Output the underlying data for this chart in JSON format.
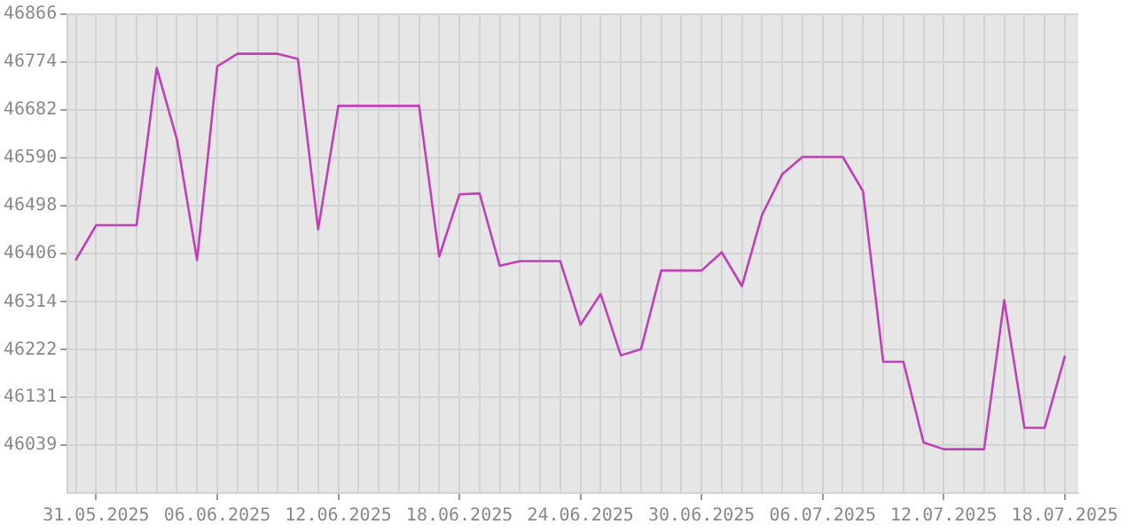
{
  "chart_data": {
    "type": "line",
    "x": [
      "2025-05-30",
      "2025-05-31",
      "2025-06-01",
      "2025-06-02",
      "2025-06-03",
      "2025-06-04",
      "2025-06-05",
      "2025-06-06",
      "2025-06-07",
      "2025-06-08",
      "2025-06-09",
      "2025-06-10",
      "2025-06-11",
      "2025-06-12",
      "2025-06-13",
      "2025-06-14",
      "2025-06-15",
      "2025-06-16",
      "2025-06-17",
      "2025-06-18",
      "2025-06-19",
      "2025-06-20",
      "2025-06-21",
      "2025-06-22",
      "2025-06-23",
      "2025-06-24",
      "2025-06-25",
      "2025-06-26",
      "2025-06-27",
      "2025-06-28",
      "2025-06-29",
      "2025-06-30",
      "2025-07-01",
      "2025-07-02",
      "2025-07-03",
      "2025-07-04",
      "2025-07-05",
      "2025-07-06",
      "2025-07-07",
      "2025-07-08",
      "2025-07-09",
      "2025-07-10",
      "2025-07-11",
      "2025-07-12",
      "2025-07-13",
      "2025-07-14",
      "2025-07-15",
      "2025-07-16",
      "2025-07-17",
      "2025-07-18"
    ],
    "series": [
      {
        "color": "#c040b8",
        "values": [
          46395,
          46461,
          46461,
          46461,
          46763,
          46626,
          46394,
          46766,
          46790,
          46790,
          46790,
          46780,
          46453,
          46690,
          46690,
          46690,
          46690,
          46690,
          46401,
          46520,
          46522,
          46383,
          46392,
          46392,
          46392,
          46270,
          46329,
          46211,
          46223,
          46374,
          46374,
          46374,
          46409,
          46344,
          46481,
          46559,
          46592,
          46592,
          46592,
          46526,
          46199,
          46199,
          46044,
          46031,
          46031,
          46031,
          46317,
          46072,
          46072,
          46209
        ]
      }
    ],
    "xlim": [
      "2025-05-29T14:00",
      "2025-07-18T16:00"
    ],
    "xticks": [
      {
        "value": "2025-05-30",
        "label": null
      },
      {
        "value": "2025-05-31",
        "label": "31.05.2025"
      },
      {
        "value": "2025-06-01",
        "label": null
      },
      {
        "value": "2025-06-02",
        "label": null
      },
      {
        "value": "2025-06-03",
        "label": null
      },
      {
        "value": "2025-06-04",
        "label": null
      },
      {
        "value": "2025-06-05",
        "label": null
      },
      {
        "value": "2025-06-06",
        "label": "06.06.2025"
      },
      {
        "value": "2025-06-07",
        "label": null
      },
      {
        "value": "2025-06-08",
        "label": null
      },
      {
        "value": "2025-06-09",
        "label": null
      },
      {
        "value": "2025-06-10",
        "label": null
      },
      {
        "value": "2025-06-11",
        "label": null
      },
      {
        "value": "2025-06-12",
        "label": "12.06.2025"
      },
      {
        "value": "2025-06-13",
        "label": null
      },
      {
        "value": "2025-06-14",
        "label": null
      },
      {
        "value": "2025-06-15",
        "label": null
      },
      {
        "value": "2025-06-16",
        "label": null
      },
      {
        "value": "2025-06-17",
        "label": null
      },
      {
        "value": "2025-06-18",
        "label": "18.06.2025"
      },
      {
        "value": "2025-06-19",
        "label": null
      },
      {
        "value": "2025-06-20",
        "label": null
      },
      {
        "value": "2025-06-21",
        "label": null
      },
      {
        "value": "2025-06-22",
        "label": null
      },
      {
        "value": "2025-06-23",
        "label": null
      },
      {
        "value": "2025-06-24",
        "label": "24.06.2025"
      },
      {
        "value": "2025-06-25",
        "label": null
      },
      {
        "value": "2025-06-26",
        "label": null
      },
      {
        "value": "2025-06-27",
        "label": null
      },
      {
        "value": "2025-06-28",
        "label": null
      },
      {
        "value": "2025-06-29",
        "label": null
      },
      {
        "value": "2025-06-30",
        "label": "30.06.2025"
      },
      {
        "value": "2025-07-01",
        "label": null
      },
      {
        "value": "2025-07-02",
        "label": null
      },
      {
        "value": "2025-07-03",
        "label": null
      },
      {
        "value": "2025-07-04",
        "label": null
      },
      {
        "value": "2025-07-05",
        "label": null
      },
      {
        "value": "2025-07-06",
        "label": "06.07.2025"
      },
      {
        "value": "2025-07-07",
        "label": null
      },
      {
        "value": "2025-07-08",
        "label": null
      },
      {
        "value": "2025-07-09",
        "label": null
      },
      {
        "value": "2025-07-10",
        "label": null
      },
      {
        "value": "2025-07-11",
        "label": null
      },
      {
        "value": "2025-07-12",
        "label": "12.07.2025"
      },
      {
        "value": "2025-07-13",
        "label": null
      },
      {
        "value": "2025-07-14",
        "label": null
      },
      {
        "value": "2025-07-15",
        "label": null
      },
      {
        "value": "2025-07-16",
        "label": null
      },
      {
        "value": "2025-07-17",
        "label": null
      },
      {
        "value": "2025-07-18",
        "label": "18.07.2025"
      }
    ],
    "ylim": [
      45947,
      46866
    ],
    "yticks": [
      46039,
      46131,
      46222,
      46314,
      46406,
      46498,
      46590,
      46682,
      46774,
      46866
    ],
    "grid": true,
    "legend": false,
    "marker": "none",
    "line_style": "solid"
  }
}
